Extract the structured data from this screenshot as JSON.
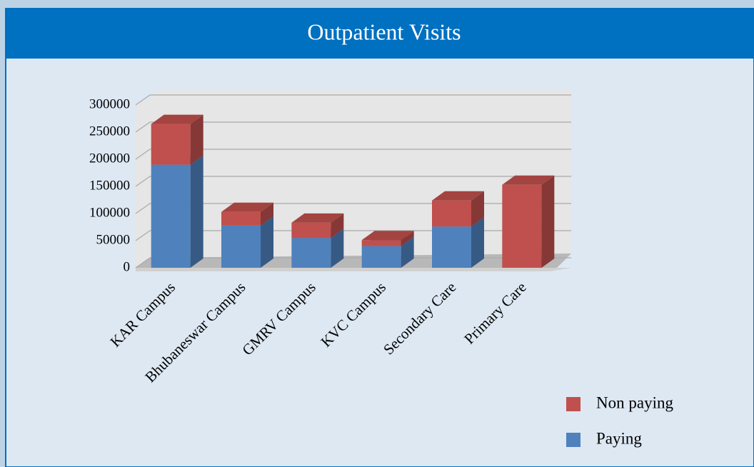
{
  "chart_data": {
    "type": "bar3d_stacked",
    "title": "Outpatient Visits",
    "categories": [
      "KAR Campus",
      "Bhubaneswar Campus",
      "GMRV Campus",
      "KVC Campus",
      "Secondary Care",
      "Primary Care"
    ],
    "series": [
      {
        "name": "Paying",
        "color": "#4f81bd",
        "values": [
          190000,
          78000,
          55000,
          40000,
          76000,
          0
        ]
      },
      {
        "name": "Non paying",
        "color": "#c0504d",
        "values": [
          75000,
          25000,
          28000,
          11000,
          48000,
          153000
        ]
      }
    ],
    "ylim": [
      0,
      300000
    ],
    "yticks": [
      0,
      50000,
      100000,
      150000,
      200000,
      250000,
      300000
    ],
    "grid": true
  }
}
